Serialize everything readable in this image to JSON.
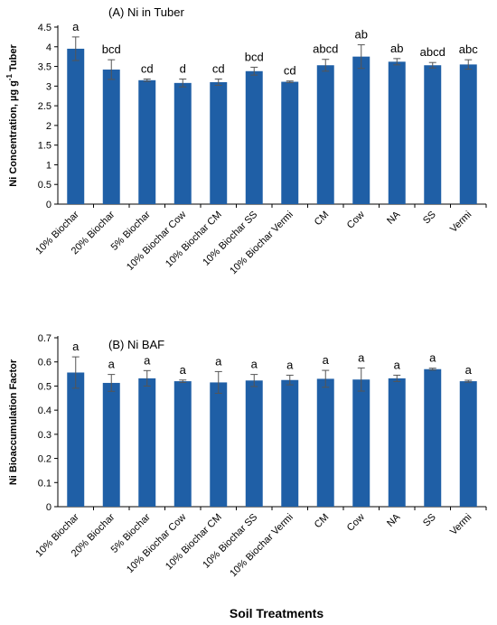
{
  "figure": {
    "x_axis_title": "Soil Treatments",
    "bar_color": "#1f5fa6",
    "error_color": "#555555"
  },
  "chart_data": [
    {
      "type": "bar",
      "title": "(A) Ni in Tuber",
      "ylabel_main": "Ni Concentration, µg g",
      "ylabel_sup": "-1",
      "ylabel_tail": " Tuber",
      "xlabel": "",
      "ylim": [
        0,
        4.5
      ],
      "yticks": [
        "0",
        "0.5",
        "1",
        "1.5",
        "2",
        "2.5",
        "3",
        "3.5",
        "4",
        "4.5"
      ],
      "categories": [
        "10% Biochar",
        "20% Biochar",
        "5% Biochar",
        "10% Biochar Cow",
        "10% Biochar CM",
        "10% Biochar SS",
        "10% Biochar Vermi",
        "CM",
        "Cow",
        "NA",
        "SS",
        "Vermi"
      ],
      "values": [
        3.95,
        3.42,
        3.15,
        3.08,
        3.1,
        3.38,
        3.11,
        3.53,
        3.75,
        3.62,
        3.53,
        3.55
      ],
      "errors": [
        0.3,
        0.25,
        0.03,
        0.1,
        0.08,
        0.1,
        0.02,
        0.15,
        0.3,
        0.08,
        0.07,
        0.12
      ],
      "letters": [
        "a",
        "bcd",
        "cd",
        "d",
        "cd",
        "bcd",
        "cd",
        "abcd",
        "ab",
        "ab",
        "abcd",
        "abc"
      ]
    },
    {
      "type": "bar",
      "title": "(B) Ni BAF",
      "ylabel_main": "Ni Bioaccumulation Factor",
      "ylabel_sup": "",
      "ylabel_tail": "",
      "xlabel": "Soil Treatments",
      "ylim": [
        0,
        0.7
      ],
      "yticks": [
        "0",
        "0.1",
        "0.2",
        "0.3",
        "0.4",
        "0.5",
        "0.6",
        "0.7"
      ],
      "categories": [
        "10% Biochar",
        "20% Biochar",
        "5% Biochar",
        "10% Biochar Cow",
        "10% Biochar CM",
        "10% Biochar SS",
        "10% Biochar Vermi",
        "CM",
        "Cow",
        "NA",
        "SS",
        "Vermi"
      ],
      "values": [
        0.556,
        0.513,
        0.532,
        0.52,
        0.515,
        0.523,
        0.525,
        0.53,
        0.527,
        0.532,
        0.57,
        0.52
      ],
      "errors": [
        0.065,
        0.035,
        0.032,
        0.005,
        0.045,
        0.025,
        0.02,
        0.035,
        0.048,
        0.013,
        0.004,
        0.004
      ],
      "letters": [
        "a",
        "a",
        "a",
        "a",
        "a",
        "a",
        "a",
        "a",
        "a",
        "a",
        "a",
        "a"
      ]
    }
  ]
}
